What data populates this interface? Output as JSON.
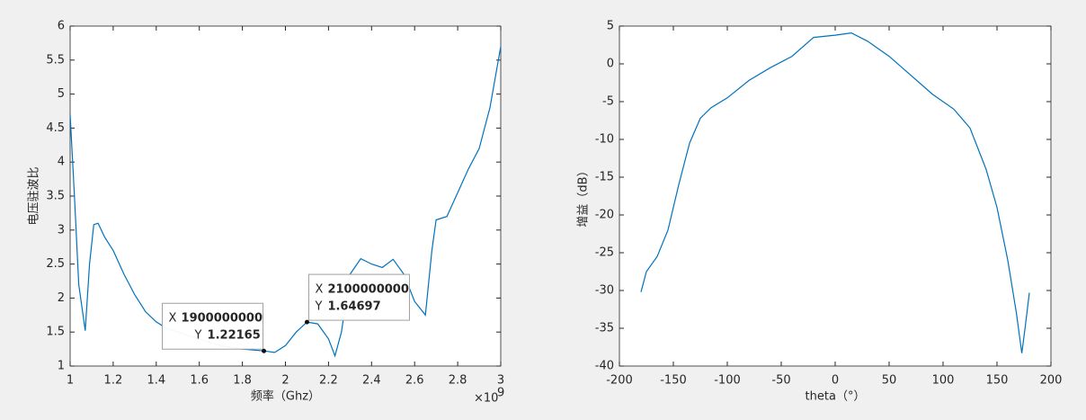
{
  "chart_data": [
    {
      "type": "line",
      "xlabel": "频率（Ghz）",
      "ylabel": "电压驻波比",
      "x_exponent": "×10",
      "x_exponent_power": "9",
      "color": "#0072bd",
      "x": [
        1000000000,
        1020000000,
        1040000000,
        1070000000,
        1090000000,
        1110000000,
        1130000000,
        1160000000,
        1200000000,
        1250000000,
        1300000000,
        1350000000,
        1400000000,
        1450000000,
        1500000000,
        1600000000,
        1700000000,
        1800000000,
        1900000000,
        1950000000,
        2000000000,
        2050000000,
        2100000000,
        2150000000,
        2200000000,
        2230000000,
        2260000000,
        2300000000,
        2350000000,
        2400000000,
        2450000000,
        2500000000,
        2550000000,
        2600000000,
        2650000000,
        2680000000,
        2700000000,
        2750000000,
        2800000000,
        2850000000,
        2900000000,
        2950000000,
        3000000000
      ],
      "values": [
        4.7,
        3.5,
        2.2,
        1.52,
        2.5,
        3.08,
        3.1,
        2.9,
        2.7,
        2.35,
        2.05,
        1.8,
        1.65,
        1.55,
        1.5,
        1.4,
        1.3,
        1.25,
        1.22165,
        1.2,
        1.3,
        1.5,
        1.64697,
        1.62,
        1.4,
        1.15,
        1.5,
        2.35,
        2.58,
        2.5,
        2.45,
        2.57,
        2.35,
        1.95,
        1.75,
        2.7,
        3.15,
        3.2,
        3.55,
        3.9,
        4.2,
        4.8,
        5.7
      ],
      "xlim": [
        1000000000,
        3000000000
      ],
      "xticks": [
        {
          "value": 1000000000,
          "label": "1"
        },
        {
          "value": 1200000000,
          "label": "1.2"
        },
        {
          "value": 1400000000,
          "label": "1.4"
        },
        {
          "value": 1600000000,
          "label": "1.6"
        },
        {
          "value": 1800000000,
          "label": "1.8"
        },
        {
          "value": 2000000000,
          "label": "2"
        },
        {
          "value": 2200000000,
          "label": "2.2"
        },
        {
          "value": 2400000000,
          "label": "2.4"
        },
        {
          "value": 2600000000,
          "label": "2.6"
        },
        {
          "value": 2800000000,
          "label": "2.8"
        },
        {
          "value": 3000000000,
          "label": "3"
        }
      ],
      "ylim": [
        1,
        6
      ],
      "yticks": [
        1,
        1.5,
        2,
        2.5,
        3,
        3.5,
        4,
        4.5,
        5,
        5.5,
        6
      ],
      "datatips": [
        {
          "x_text": "X",
          "x": 1900000000,
          "y_text": "Y",
          "y": 1.22165
        },
        {
          "x_text": "X",
          "x": 2100000000,
          "y_text": "Y",
          "y": 1.64697
        }
      ]
    },
    {
      "type": "line",
      "xlabel": "theta（°）",
      "ylabel": "增益（dB）",
      "color": "#0072bd",
      "x": [
        -180,
        -175,
        -165,
        -155,
        -145,
        -135,
        -125,
        -115,
        -100,
        -80,
        -60,
        -40,
        -20,
        0,
        15,
        30,
        50,
        70,
        90,
        110,
        125,
        140,
        150,
        160,
        168,
        173,
        176,
        180
      ],
      "values": [
        -30.2,
        -27.5,
        -25.5,
        -22,
        -16,
        -10.5,
        -7.2,
        -5.8,
        -4.5,
        -2.2,
        -0.5,
        1,
        3.5,
        3.8,
        4.1,
        3,
        1,
        -1.5,
        -4,
        -6,
        -8.5,
        -14,
        -19,
        -26,
        -33,
        -38.3,
        -35,
        -30.3
      ],
      "xlim": [
        -200,
        200
      ],
      "xticks": [
        -200,
        -150,
        -100,
        -50,
        0,
        50,
        100,
        150,
        200
      ],
      "ylim": [
        -40,
        5
      ],
      "yticks": [
        -40,
        -35,
        -30,
        -25,
        -20,
        -15,
        -10,
        -5,
        0,
        5
      ]
    }
  ]
}
